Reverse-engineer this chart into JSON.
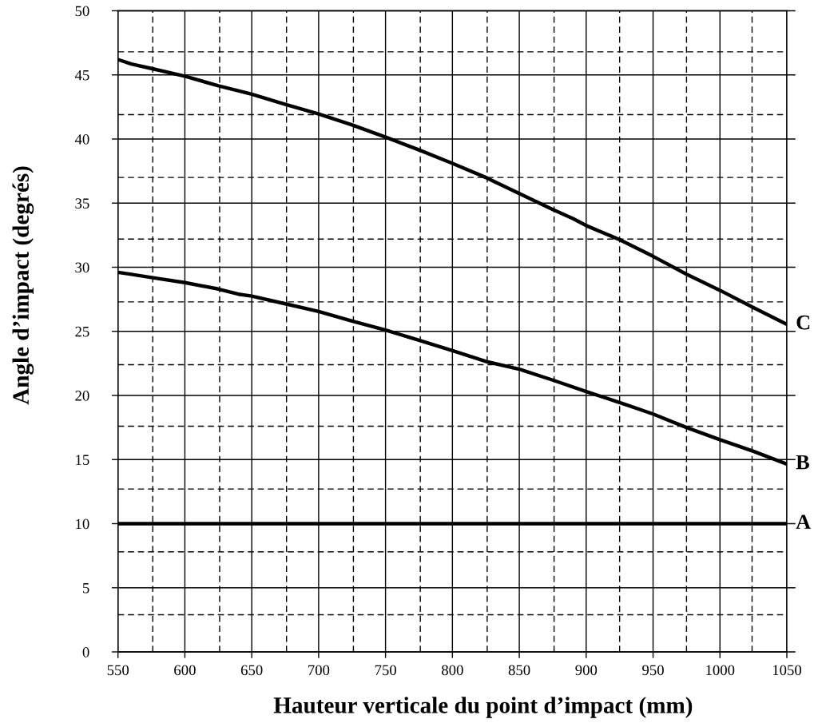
{
  "chart_data": {
    "type": "line",
    "xlabel": "Hauteur verticale du point d’impact (mm)",
    "ylabel": "Angle d’impact (degrés)",
    "xlim": [
      550,
      1050
    ],
    "ylim": [
      0,
      50
    ],
    "xticks": [
      550,
      {
        "value": 576,
        "label": null
      },
      600,
      {
        "value": 626,
        "label": null
      },
      650,
      {
        "value": 676,
        "label": null
      },
      700,
      {
        "value": 726,
        "label": null
      },
      750,
      {
        "value": 776,
        "label": null
      },
      800,
      {
        "value": 826,
        "label": null
      },
      850,
      {
        "value": 876,
        "label": null
      },
      900,
      {
        "value": 925,
        "label": null
      },
      950,
      {
        "value": 975,
        "label": null
      },
      1000,
      {
        "value": 1024,
        "label": null
      },
      1050
    ],
    "yticks": [
      0,
      {
        "value": 2.9,
        "label": null
      },
      5,
      {
        "value": 7.8,
        "label": null
      },
      10,
      {
        "value": 12.7,
        "label": null
      },
      15,
      {
        "value": 17.6,
        "label": null
      },
      20,
      {
        "value": 22.4,
        "label": null
      },
      25,
      {
        "value": 27.3,
        "label": null
      },
      30,
      {
        "value": 32.2,
        "label": null
      },
      35,
      {
        "value": 37.0,
        "label": null
      },
      40,
      {
        "value": 41.9,
        "label": null
      },
      45,
      {
        "value": 46.8,
        "label": null
      },
      50
    ],
    "grid": true,
    "line_style": "solid",
    "series": [
      {
        "name": "A",
        "color": "#000000",
        "x": [
          550,
          600,
          650,
          700,
          750,
          800,
          850,
          900,
          950,
          1000,
          1050
        ],
        "values": [
          10,
          10,
          10,
          10,
          10,
          10,
          10,
          10,
          10,
          10,
          10
        ]
      },
      {
        "name": "B",
        "color": "#000000",
        "x": [
          550,
          560,
          575,
          600,
          625,
          640,
          650,
          675,
          700,
          725,
          750,
          775,
          800,
          825,
          850,
          875,
          900,
          925,
          950,
          975,
          1000,
          1025,
          1050
        ],
        "values": [
          29.6,
          29.45,
          29.2,
          28.8,
          28.3,
          27.9,
          27.75,
          27.15,
          26.55,
          25.8,
          25.1,
          24.3,
          23.5,
          22.65,
          22.05,
          21.2,
          20.3,
          19.45,
          18.55,
          17.5,
          16.55,
          15.65,
          14.65
        ]
      },
      {
        "name": "C",
        "color": "#000000",
        "x": [
          550,
          560,
          575,
          600,
          625,
          650,
          675,
          700,
          725,
          750,
          775,
          800,
          825,
          850,
          875,
          890,
          900,
          925,
          950,
          975,
          1000,
          1025,
          1050
        ],
        "values": [
          46.2,
          45.85,
          45.5,
          44.9,
          44.15,
          43.5,
          42.7,
          41.95,
          41.1,
          40.15,
          39.15,
          38.1,
          37.0,
          35.75,
          34.5,
          33.8,
          33.25,
          32.15,
          30.85,
          29.45,
          28.2,
          26.85,
          25.55
        ]
      }
    ]
  }
}
